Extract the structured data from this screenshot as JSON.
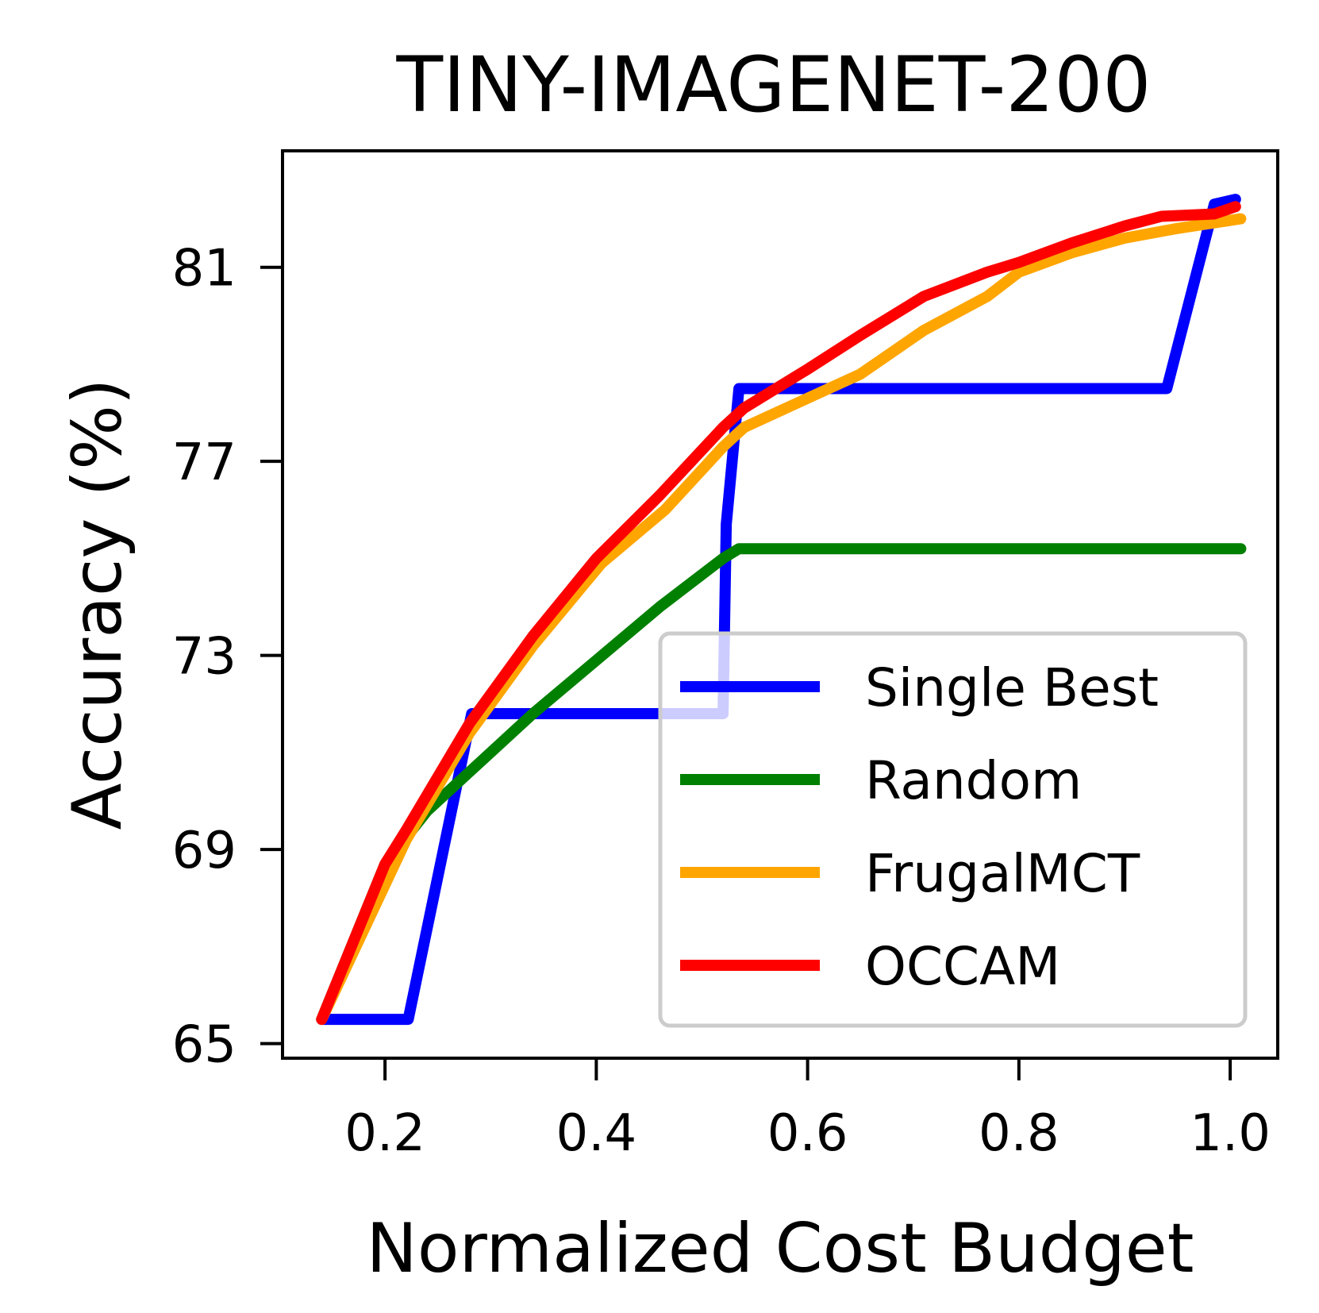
{
  "chart_data": {
    "type": "line",
    "title": "TINY-IMAGENET-200",
    "xlabel": "Normalized Cost Budget",
    "ylabel": "Accuracy (%)",
    "xlim": [
      0.103,
      1.045
    ],
    "ylim": [
      64.7,
      83.4
    ],
    "xticks": [
      0.2,
      0.4,
      0.6,
      0.8,
      1.0
    ],
    "xtick_labels": [
      "0.2",
      "0.4",
      "0.6",
      "0.8",
      "1.0"
    ],
    "yticks": [
      65,
      69,
      73,
      77,
      81
    ],
    "ytick_labels": [
      "65",
      "69",
      "73",
      "77",
      "81"
    ],
    "grid": false,
    "legend": {
      "position": "lower right"
    },
    "series": [
      {
        "name": "Single Best",
        "color": "#0000ff",
        "x": [
          0.14,
          0.222,
          0.282,
          0.52,
          0.523,
          0.535,
          0.94,
          0.985,
          1.005
        ],
        "y": [
          65.5,
          65.5,
          71.8,
          71.8,
          75.7,
          78.5,
          78.5,
          82.3,
          82.4
        ]
      },
      {
        "name": "Random",
        "color": "#008000",
        "x": [
          0.14,
          0.2,
          0.24,
          0.28,
          0.34,
          0.4,
          0.46,
          0.52,
          0.535,
          1.01
        ],
        "y": [
          65.5,
          68.7,
          69.8,
          70.6,
          71.8,
          72.9,
          74.0,
          75.0,
          75.2,
          75.2
        ]
      },
      {
        "name": "FrugalMCT",
        "color": "#ffa500",
        "x": [
          0.14,
          0.22,
          0.28,
          0.34,
          0.405,
          0.465,
          0.52,
          0.54,
          0.6,
          0.65,
          0.71,
          0.77,
          0.8,
          0.85,
          0.9,
          0.95,
          1.01
        ],
        "y": [
          65.5,
          69.2,
          71.4,
          73.2,
          74.9,
          76.0,
          77.3,
          77.7,
          78.3,
          78.8,
          79.7,
          80.4,
          80.9,
          81.3,
          81.6,
          81.8,
          82.0
        ]
      },
      {
        "name": "OCCAM",
        "color": "#ff0000",
        "x": [
          0.14,
          0.2,
          0.22,
          0.28,
          0.34,
          0.4,
          0.46,
          0.52,
          0.54,
          0.6,
          0.65,
          0.71,
          0.77,
          0.8,
          0.85,
          0.9,
          0.935,
          0.985,
          1.005
        ],
        "y": [
          65.5,
          68.7,
          69.4,
          71.6,
          73.4,
          75.0,
          76.3,
          77.7,
          78.1,
          78.9,
          79.6,
          80.4,
          80.9,
          81.1,
          81.5,
          81.85,
          82.05,
          82.1,
          82.25
        ]
      }
    ]
  }
}
